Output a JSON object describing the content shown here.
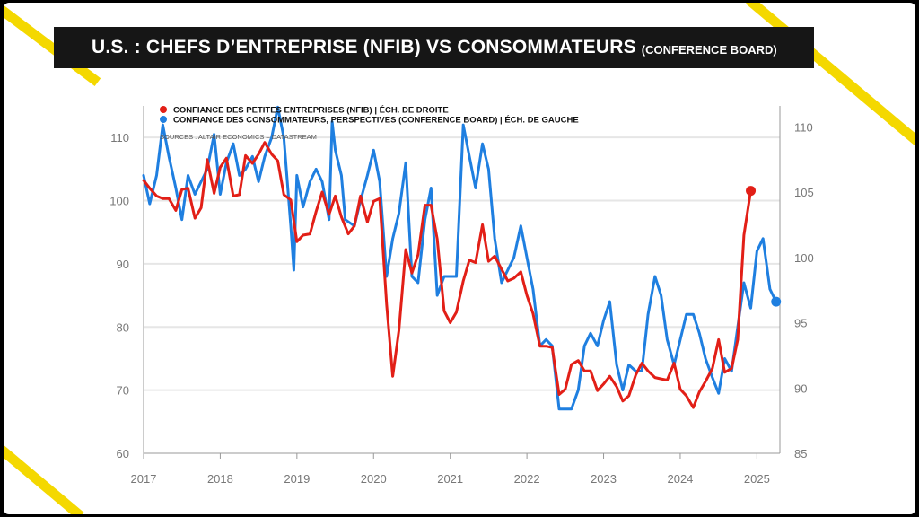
{
  "title": {
    "main": "U.S. : CHEFS D’ENTREPRISE (NFIB) VS CONSOMMATEURS",
    "sub": "(CONFERENCE BOARD)"
  },
  "colors": {
    "nfib": "#e21f17",
    "consumer": "#1f7fe0",
    "accent": "#f4d800",
    "titlebar": "#161616"
  },
  "chart_data": {
    "type": "line",
    "legend": {
      "nfib": "CONFIANCE DES PETITES ENTREPRISES (NFIB) | ÉCH. DE DROITE",
      "consumer": "CONFIANCE DES CONSOMMATEURS, PERSPECTIVES (CONFERENCE BOARD) | ÉCH. DE GAUCHE"
    },
    "source": "SOURCES : ALTAIR ECONOMICS – DATASTREAM",
    "x_ticks": [
      "2017",
      "2018",
      "2019",
      "2020",
      "2021",
      "2022",
      "2023",
      "2024",
      "2025"
    ],
    "x_range": [
      2017,
      2025.3
    ],
    "left_axis": {
      "ylim": [
        60,
        115
      ],
      "ticks": [
        "60",
        "70",
        "80",
        "90",
        "100",
        "110"
      ]
    },
    "right_axis": {
      "ylim": [
        85,
        111.6
      ],
      "ticks": [
        "85",
        "90",
        "95",
        "100",
        "105",
        "110"
      ]
    },
    "grid": true,
    "series": [
      {
        "name": "CONFIANCE DES CONSOMMATEURS, PERSPECTIVES (CONFERENCE BOARD) | ÉCH. DE GAUCHE",
        "axis": "left",
        "points": [
          [
            2017.0,
            104
          ],
          [
            2017.08,
            99.5
          ],
          [
            2017.17,
            104
          ],
          [
            2017.25,
            112
          ],
          [
            2017.33,
            107
          ],
          [
            2017.42,
            102
          ],
          [
            2017.5,
            97
          ],
          [
            2017.58,
            104
          ],
          [
            2017.67,
            101
          ],
          [
            2017.75,
            103
          ],
          [
            2017.83,
            105
          ],
          [
            2017.92,
            110.5
          ],
          [
            2018.0,
            101
          ],
          [
            2018.08,
            106
          ],
          [
            2018.17,
            109
          ],
          [
            2018.25,
            104
          ],
          [
            2018.33,
            105
          ],
          [
            2018.42,
            107
          ],
          [
            2018.5,
            103
          ],
          [
            2018.58,
            107
          ],
          [
            2018.67,
            110
          ],
          [
            2018.75,
            114.8
          ],
          [
            2018.83,
            110
          ],
          [
            2018.92,
            96
          ],
          [
            2018.96,
            89
          ],
          [
            2019.0,
            104
          ],
          [
            2019.08,
            99
          ],
          [
            2019.17,
            103
          ],
          [
            2019.25,
            105
          ],
          [
            2019.33,
            103
          ],
          [
            2019.42,
            97
          ],
          [
            2019.46,
            112.5
          ],
          [
            2019.5,
            108
          ],
          [
            2019.58,
            104
          ],
          [
            2019.63,
            97
          ],
          [
            2019.75,
            96
          ],
          [
            2019.83,
            100
          ],
          [
            2019.92,
            104
          ],
          [
            2020.0,
            108
          ],
          [
            2020.08,
            103
          ],
          [
            2020.17,
            88
          ],
          [
            2020.25,
            94
          ],
          [
            2020.33,
            98
          ],
          [
            2020.42,
            106
          ],
          [
            2020.5,
            88
          ],
          [
            2020.58,
            87
          ],
          [
            2020.67,
            97
          ],
          [
            2020.75,
            102
          ],
          [
            2020.83,
            85
          ],
          [
            2020.92,
            88
          ],
          [
            2021.0,
            88
          ],
          [
            2021.08,
            88
          ],
          [
            2021.17,
            112
          ],
          [
            2021.25,
            107
          ],
          [
            2021.33,
            102
          ],
          [
            2021.42,
            109
          ],
          [
            2021.5,
            105
          ],
          [
            2021.58,
            94
          ],
          [
            2021.67,
            87
          ],
          [
            2021.75,
            89
          ],
          [
            2021.83,
            91
          ],
          [
            2021.92,
            96
          ],
          [
            2022.0,
            91
          ],
          [
            2022.08,
            86
          ],
          [
            2022.17,
            77
          ],
          [
            2022.25,
            78
          ],
          [
            2022.33,
            77
          ],
          [
            2022.42,
            67
          ],
          [
            2022.5,
            67
          ],
          [
            2022.58,
            67
          ],
          [
            2022.67,
            70
          ],
          [
            2022.75,
            77
          ],
          [
            2022.83,
            79
          ],
          [
            2022.92,
            77
          ],
          [
            2023.0,
            81
          ],
          [
            2023.08,
            84
          ],
          [
            2023.17,
            74
          ],
          [
            2023.25,
            70
          ],
          [
            2023.33,
            74
          ],
          [
            2023.42,
            73
          ],
          [
            2023.5,
            73
          ],
          [
            2023.58,
            82
          ],
          [
            2023.67,
            88
          ],
          [
            2023.75,
            85
          ],
          [
            2023.83,
            78
          ],
          [
            2023.92,
            74
          ],
          [
            2024.0,
            78
          ],
          [
            2024.08,
            82
          ],
          [
            2024.17,
            82
          ],
          [
            2024.25,
            79
          ],
          [
            2024.33,
            75
          ],
          [
            2024.42,
            72
          ],
          [
            2024.5,
            69.5
          ],
          [
            2024.58,
            75
          ],
          [
            2024.67,
            73
          ],
          [
            2024.75,
            80
          ],
          [
            2024.83,
            87
          ],
          [
            2024.92,
            83
          ],
          [
            2025.0,
            92
          ],
          [
            2025.08,
            94
          ],
          [
            2025.17,
            86
          ],
          [
            2025.25,
            84
          ]
        ]
      },
      {
        "name": "CONFIANCE DES PETITES ENTREPRISES (NFIB) | ÉCH. DE DROITE",
        "axis": "right",
        "points": [
          [
            2017.0,
            105.9
          ],
          [
            2017.08,
            105.3
          ],
          [
            2017.17,
            104.7
          ],
          [
            2017.25,
            104.5
          ],
          [
            2017.33,
            104.5
          ],
          [
            2017.42,
            103.6
          ],
          [
            2017.5,
            105.2
          ],
          [
            2017.58,
            105.3
          ],
          [
            2017.67,
            103.0
          ],
          [
            2017.75,
            103.8
          ],
          [
            2017.83,
            107.5
          ],
          [
            2017.92,
            104.9
          ],
          [
            2018.0,
            106.9
          ],
          [
            2018.08,
            107.6
          ],
          [
            2018.17,
            104.7
          ],
          [
            2018.25,
            104.8
          ],
          [
            2018.33,
            107.8
          ],
          [
            2018.42,
            107.2
          ],
          [
            2018.5,
            107.9
          ],
          [
            2018.58,
            108.8
          ],
          [
            2018.67,
            107.9
          ],
          [
            2018.75,
            107.4
          ],
          [
            2018.83,
            104.8
          ],
          [
            2018.92,
            104.4
          ],
          [
            2019.0,
            101.2
          ],
          [
            2019.08,
            101.7
          ],
          [
            2019.17,
            101.8
          ],
          [
            2019.25,
            103.5
          ],
          [
            2019.33,
            105.0
          ],
          [
            2019.42,
            103.3
          ],
          [
            2019.5,
            104.7
          ],
          [
            2019.58,
            103.1
          ],
          [
            2019.67,
            101.8
          ],
          [
            2019.75,
            102.4
          ],
          [
            2019.83,
            104.7
          ],
          [
            2019.92,
            102.7
          ],
          [
            2020.0,
            104.3
          ],
          [
            2020.08,
            104.5
          ],
          [
            2020.17,
            96.4
          ],
          [
            2020.25,
            90.9
          ],
          [
            2020.33,
            94.4
          ],
          [
            2020.42,
            100.6
          ],
          [
            2020.5,
            98.8
          ],
          [
            2020.58,
            100.2
          ],
          [
            2020.67,
            104.0
          ],
          [
            2020.75,
            104.0
          ],
          [
            2020.83,
            101.4
          ],
          [
            2020.92,
            95.9
          ],
          [
            2021.0,
            95.0
          ],
          [
            2021.08,
            95.8
          ],
          [
            2021.17,
            98.2
          ],
          [
            2021.25,
            99.8
          ],
          [
            2021.33,
            99.6
          ],
          [
            2021.42,
            102.5
          ],
          [
            2021.5,
            99.7
          ],
          [
            2021.58,
            100.1
          ],
          [
            2021.67,
            99.1
          ],
          [
            2021.75,
            98.2
          ],
          [
            2021.83,
            98.4
          ],
          [
            2021.92,
            98.9
          ],
          [
            2022.0,
            97.1
          ],
          [
            2022.08,
            95.7
          ],
          [
            2022.17,
            93.2
          ],
          [
            2022.25,
            93.2
          ],
          [
            2022.33,
            93.1
          ],
          [
            2022.42,
            89.5
          ],
          [
            2022.5,
            89.9
          ],
          [
            2022.58,
            91.8
          ],
          [
            2022.67,
            92.1
          ],
          [
            2022.75,
            91.3
          ],
          [
            2022.83,
            91.3
          ],
          [
            2022.92,
            89.8
          ],
          [
            2023.0,
            90.3
          ],
          [
            2023.08,
            90.9
          ],
          [
            2023.17,
            90.1
          ],
          [
            2023.25,
            89.0
          ],
          [
            2023.33,
            89.4
          ],
          [
            2023.42,
            91.0
          ],
          [
            2023.5,
            91.9
          ],
          [
            2023.58,
            91.3
          ],
          [
            2023.67,
            90.8
          ],
          [
            2023.75,
            90.7
          ],
          [
            2023.83,
            90.6
          ],
          [
            2023.92,
            91.9
          ],
          [
            2024.0,
            89.9
          ],
          [
            2024.08,
            89.4
          ],
          [
            2024.17,
            88.5
          ],
          [
            2024.25,
            89.7
          ],
          [
            2024.33,
            90.5
          ],
          [
            2024.42,
            91.5
          ],
          [
            2024.5,
            93.7
          ],
          [
            2024.58,
            91.2
          ],
          [
            2024.67,
            91.5
          ],
          [
            2024.75,
            93.7
          ],
          [
            2024.83,
            101.7
          ],
          [
            2024.92,
            105.1
          ]
        ]
      }
    ]
  }
}
